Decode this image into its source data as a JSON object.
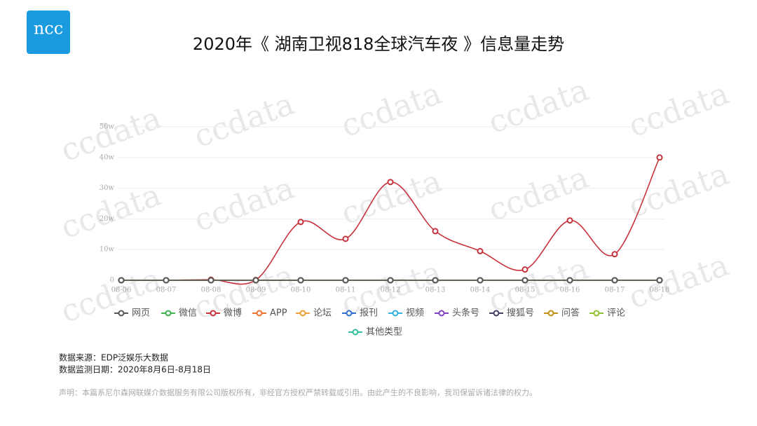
{
  "logo": "ncc",
  "watermark": "ccdata",
  "chart_data": {
    "type": "line",
    "title": "2020年《 湖南卫视818全球汽车夜 》信息量走势",
    "categories": [
      "08-06",
      "08-07",
      "08-08",
      "08-09",
      "08-10",
      "08-11",
      "08-12",
      "08-13",
      "08-14",
      "08-15",
      "08-16",
      "08-17",
      "08-18"
    ],
    "ylim": [
      0,
      50
    ],
    "yticks": [
      0,
      {
        "value": 10,
        "label": "10w"
      },
      {
        "value": 20,
        "label": "20w"
      },
      {
        "value": 30,
        "label": "30w"
      },
      {
        "value": 40,
        "label": "40w"
      },
      {
        "value": 50,
        "label": "50w"
      }
    ],
    "grid": true,
    "series": [
      {
        "name": "网页",
        "color": "#555555",
        "values": [
          0,
          0,
          0,
          0,
          0,
          0,
          0,
          0,
          0,
          0,
          0,
          0,
          0
        ]
      },
      {
        "name": "微信",
        "color": "#3cb44b",
        "values": [
          0,
          0,
          0,
          0,
          0,
          0,
          0,
          0,
          0,
          0,
          0,
          0,
          0
        ]
      },
      {
        "name": "微博",
        "color": "#c8323c",
        "values": [
          0,
          0,
          0.2,
          0.1,
          19,
          13.5,
          32,
          16,
          9.5,
          3.5,
          19.5,
          8.5,
          40
        ]
      },
      {
        "name": "APP",
        "color": "#f07030",
        "values": [
          0,
          0,
          0,
          0,
          0,
          0,
          0,
          0,
          0,
          0,
          0,
          0,
          0
        ]
      },
      {
        "name": "论坛",
        "color": "#f0a030",
        "values": [
          0,
          0,
          0,
          0,
          0,
          0,
          0,
          0,
          0,
          0,
          0,
          0,
          0
        ]
      },
      {
        "name": "报刊",
        "color": "#3070d0",
        "values": [
          0,
          0,
          0,
          0,
          0,
          0,
          0,
          0,
          0,
          0,
          0,
          0,
          0
        ]
      },
      {
        "name": "视频",
        "color": "#30b0e0",
        "values": [
          0,
          0,
          0,
          0,
          0,
          0,
          0,
          0,
          0,
          0,
          0,
          0,
          0
        ]
      },
      {
        "name": "头条号",
        "color": "#8040c0",
        "values": [
          0,
          0,
          0,
          0,
          0,
          0,
          0,
          0,
          0,
          0,
          0,
          0,
          0
        ]
      },
      {
        "name": "搜狐号",
        "color": "#404060",
        "values": [
          0,
          0,
          0,
          0,
          0,
          0,
          0,
          0,
          0,
          0,
          0,
          0,
          0
        ]
      },
      {
        "name": "问答",
        "color": "#c09010",
        "values": [
          0,
          0,
          0,
          0,
          0,
          0,
          0,
          0,
          0,
          0,
          0,
          0,
          0
        ]
      },
      {
        "name": "评论",
        "color": "#90c030",
        "values": [
          0,
          0,
          0,
          0,
          0,
          0,
          0,
          0,
          0,
          0,
          0,
          0,
          0
        ]
      },
      {
        "name": "其他类型",
        "color": "#30c0a0",
        "values": [
          0,
          0,
          0,
          0,
          0,
          0,
          0,
          0,
          0,
          0,
          0,
          0,
          0
        ]
      }
    ]
  },
  "source": "数据来源：EDP泛娱乐大数据",
  "date_range": "数据监测日期：2020年8月6日-8月18日",
  "disclaimer": "声明：本篇系尼尔森网联媒介数据服务有限公司版权所有，非经官方授权严禁转载或引用。由此产生的不良影响，我司保留诉诸法律的权力。"
}
